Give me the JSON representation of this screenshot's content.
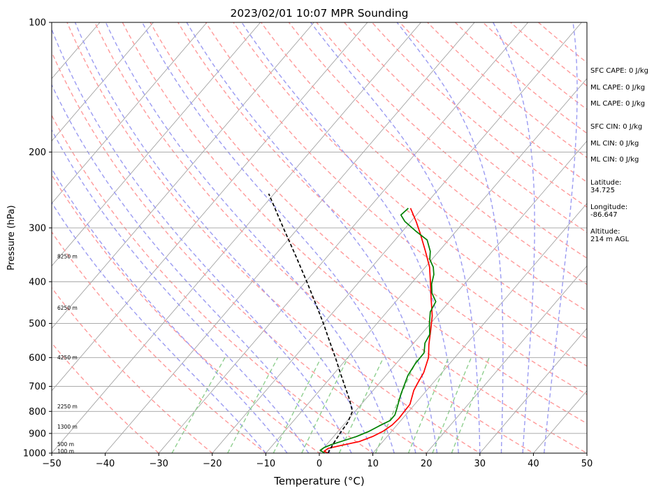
{
  "chart_data": {
    "type": "line",
    "subtype": "skew-t log-p",
    "title": "2023/02/01 10:07 MPR Sounding",
    "xlabel": "Temperature (°C)",
    "ylabel": "Pressure (hPa)",
    "xlim": [
      -50,
      50
    ],
    "ylim": [
      1000,
      100
    ],
    "y_scale": "log",
    "grid": true,
    "x_ticks": [
      -50,
      -40,
      -30,
      -20,
      -10,
      0,
      10,
      20,
      30,
      40,
      50
    ],
    "y_ticks": [
      100,
      200,
      300,
      400,
      500,
      600,
      700,
      800,
      900,
      1000
    ],
    "height_labels": [
      {
        "label": "100 m",
        "p": 990
      },
      {
        "label": "500 m",
        "p": 955
      },
      {
        "label": "1300 m",
        "p": 870
      },
      {
        "label": "2250 m",
        "p": 780
      },
      {
        "label": "4250 m",
        "p": 600
      },
      {
        "label": "6250 m",
        "p": 460
      },
      {
        "label": "8250 m",
        "p": 350
      }
    ],
    "series": [
      {
        "key": "temperature",
        "color": "#ff0000",
        "points": [
          [
            1000,
            1.6
          ],
          [
            990,
            0.6
          ],
          [
            975,
            0.9
          ],
          [
            960,
            2.8
          ],
          [
            940,
            5.6
          ],
          [
            915,
            7.3
          ],
          [
            890,
            8.4
          ],
          [
            860,
            9.1
          ],
          [
            830,
            9.3
          ],
          [
            800,
            9.2
          ],
          [
            770,
            9.1
          ],
          [
            740,
            8.3
          ],
          [
            715,
            7.6
          ],
          [
            690,
            7.2
          ],
          [
            650,
            6.6
          ],
          [
            600,
            5.1
          ],
          [
            560,
            3.1
          ],
          [
            520,
            1.2
          ],
          [
            480,
            -0.9
          ],
          [
            440,
            -3.7
          ],
          [
            400,
            -6.7
          ],
          [
            370,
            -9.2
          ],
          [
            340,
            -12.5
          ],
          [
            310,
            -16.2
          ],
          [
            290,
            -19.0
          ],
          [
            270,
            -22.2
          ]
        ]
      },
      {
        "key": "dewpoint",
        "color": "#008000",
        "points": [
          [
            1000,
            1.0
          ],
          [
            985,
            -0.3
          ],
          [
            970,
            0.0
          ],
          [
            955,
            0.9
          ],
          [
            935,
            2.6
          ],
          [
            915,
            4.3
          ],
          [
            890,
            5.8
          ],
          [
            865,
            6.8
          ],
          [
            840,
            8.0
          ],
          [
            815,
            8.0
          ],
          [
            790,
            7.4
          ],
          [
            760,
            6.6
          ],
          [
            730,
            5.8
          ],
          [
            700,
            5.1
          ],
          [
            660,
            4.1
          ],
          [
            620,
            3.6
          ],
          [
            585,
            3.5
          ],
          [
            555,
            2.1
          ],
          [
            530,
            1.6
          ],
          [
            500,
            -0.2
          ],
          [
            470,
            -1.9
          ],
          [
            445,
            -2.5
          ],
          [
            425,
            -4.6
          ],
          [
            405,
            -6.1
          ],
          [
            385,
            -7.2
          ],
          [
            370,
            -8.5
          ],
          [
            355,
            -10.4
          ],
          [
            340,
            -11.6
          ],
          [
            320,
            -14.0
          ],
          [
            305,
            -17.6
          ],
          [
            290,
            -21.1
          ],
          [
            280,
            -22.9
          ],
          [
            270,
            -22.6
          ]
        ]
      },
      {
        "key": "parcel",
        "color": "#000000",
        "points": [
          [
            1000,
            1.6
          ],
          [
            950,
            1.1
          ],
          [
            900,
            0.7
          ],
          [
            850,
            0.4
          ],
          [
            800,
            -0.5
          ],
          [
            750,
            -3.0
          ],
          [
            700,
            -5.9
          ],
          [
            650,
            -9.0
          ],
          [
            600,
            -12.3
          ],
          [
            550,
            -16.0
          ],
          [
            500,
            -20.0
          ],
          [
            450,
            -24.6
          ],
          [
            400,
            -29.8
          ],
          [
            350,
            -35.8
          ],
          [
            300,
            -42.8
          ],
          [
            250,
            -51.0
          ]
        ]
      }
    ],
    "stats": [
      "SFC CAPE: 0 J/kg",
      "ML CAPE: 0 J/kg",
      "ML CAPE: 0 J/kg",
      "SFC CIN: 0 J/kg",
      "ML CIN: 0 J/kg",
      "ML CIN: 0 J/kg"
    ],
    "location": {
      "latitude_label": "Latitude:",
      "latitude": "34.725",
      "longitude_label": "Longitude:",
      "longitude": "-86.647",
      "altitude_label": "Altitude:",
      "altitude": "214 m AGL"
    },
    "background_colors": {
      "grid": "#a0a0a0",
      "dry_adiabat": "#ff9a9a",
      "moist_adiabat": "#9b9bf2",
      "mixing_ratio": "#8fcf8f",
      "isotherm": "#9a9a9a"
    }
  }
}
